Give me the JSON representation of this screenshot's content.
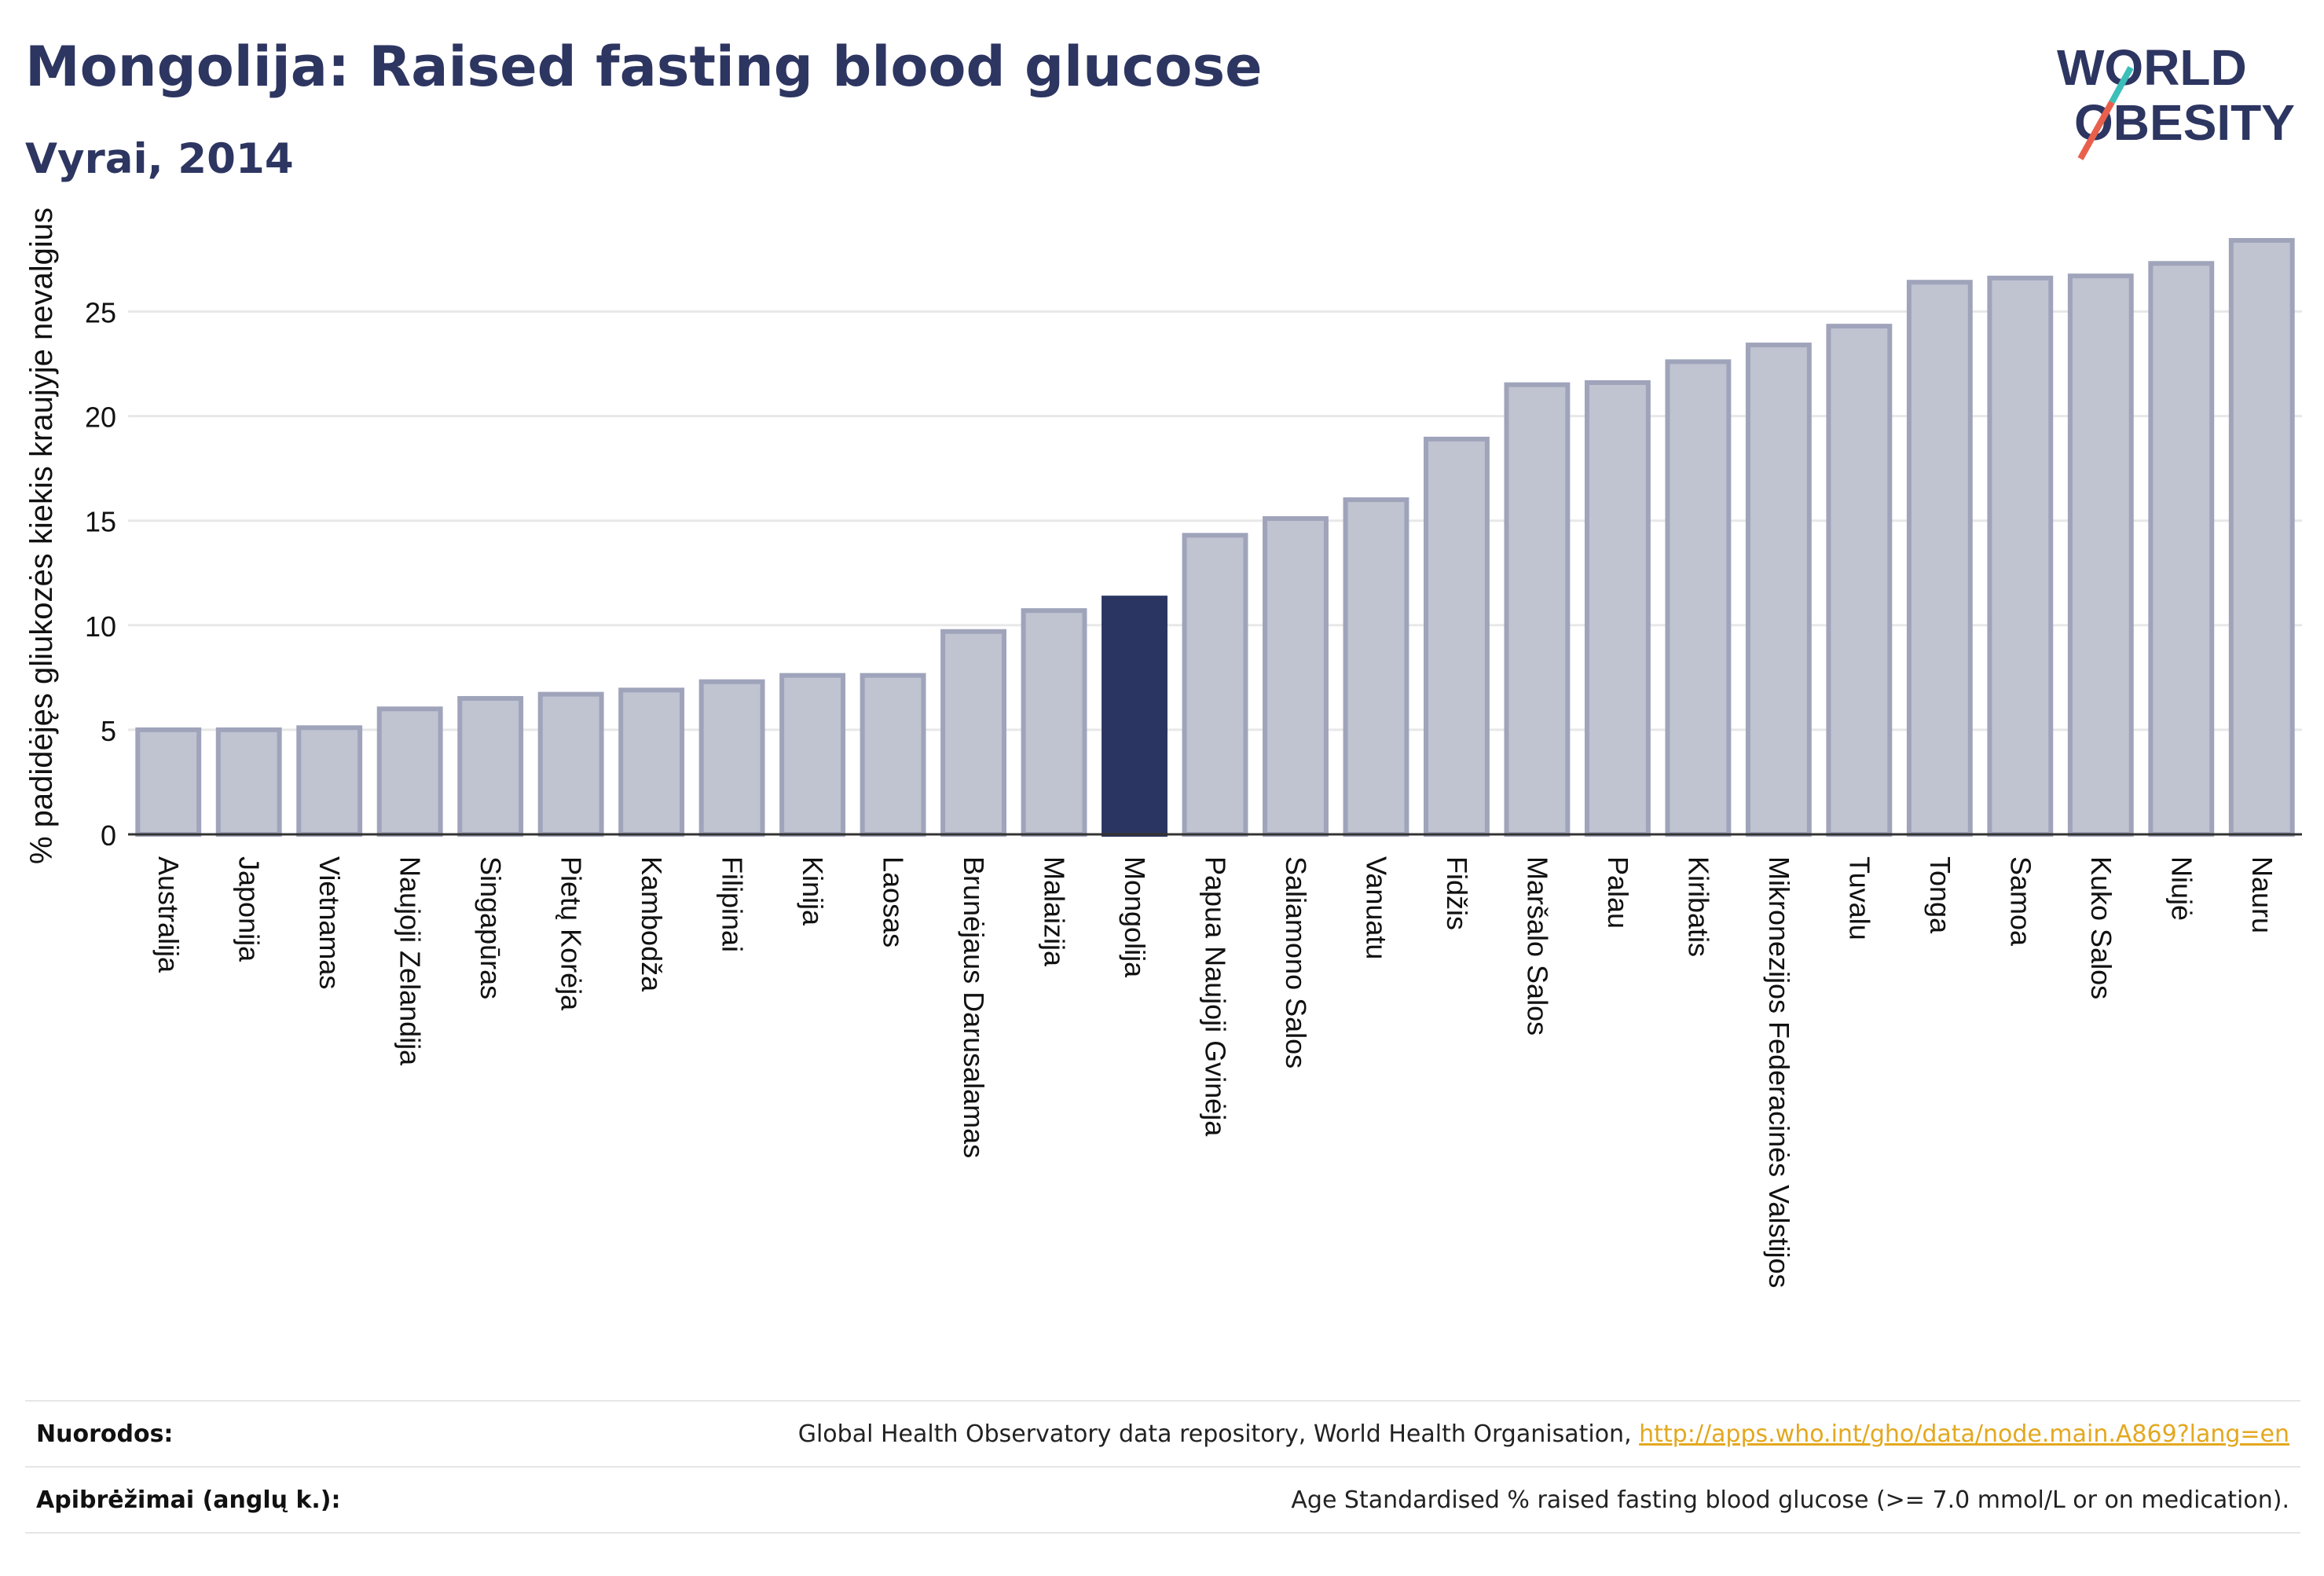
{
  "header": {
    "title": "Mongolija: Raised fasting blood glucose",
    "subtitle": "Vyrai, 2014"
  },
  "logo": {
    "line1": "WORLD",
    "line2": "OBESITY"
  },
  "colors": {
    "highlight": "#2b3561",
    "bar_fill": "#c0c3d0",
    "bar_stroke": "#9fa4bb",
    "grid": "#e8e8e8",
    "logo_text": "#2d3561",
    "logo_slash_red": "#e8604c",
    "logo_slash_teal": "#3cbfb8"
  },
  "chart_data": {
    "type": "bar",
    "title": "Mongolija: Raised fasting blood glucose",
    "subtitle": "Vyrai, 2014",
    "xlabel": "",
    "ylabel": "% padidėjęs gliukozės kiekis kraujyje nevalgius",
    "ylim": [
      0,
      29
    ],
    "yticks": [
      0,
      5,
      10,
      15,
      20,
      25
    ],
    "grid": true,
    "highlight_category": "Mongolija",
    "categories": [
      "Australija",
      "Japonija",
      "Vietnamas",
      "Naujoji Zelandija",
      "Singapūras",
      "Pietų Korėja",
      "Kambodža",
      "Filipinai",
      "Kinija",
      "Laosas",
      "Brunėjaus Darusalamas",
      "Malaizija",
      "Mongolija",
      "Papua Naujoji Gvinėja",
      "Saliamono Salos",
      "Vanuatu",
      "Fidžis",
      "Maršalo Salos",
      "Palau",
      "Kiribatis",
      "Mikronezijos Federacinės Valstijos",
      "Tuvalu",
      "Tonga",
      "Samoa",
      "Kuko Salos",
      "Niujė",
      "Nauru"
    ],
    "values": [
      5.0,
      5.0,
      5.1,
      6.0,
      6.5,
      6.7,
      6.9,
      7.3,
      7.6,
      7.6,
      9.7,
      10.7,
      11.3,
      14.3,
      15.1,
      16.0,
      18.9,
      21.5,
      21.6,
      22.6,
      23.4,
      24.3,
      26.4,
      26.6,
      26.7,
      27.3,
      28.4
    ]
  },
  "footer": {
    "sources_label": "Nuorodos:",
    "sources_text": "Global Health Observatory data repository, World Health Organisation, ",
    "sources_link": "http://apps.who.int/gho/data/node.main.A869?lang=en",
    "definitions_label": "Apibrėžimai (anglų k.):",
    "definitions_text": "Age Standardised % raised fasting blood glucose (>= 7.0 mmol/L or on medication)."
  }
}
